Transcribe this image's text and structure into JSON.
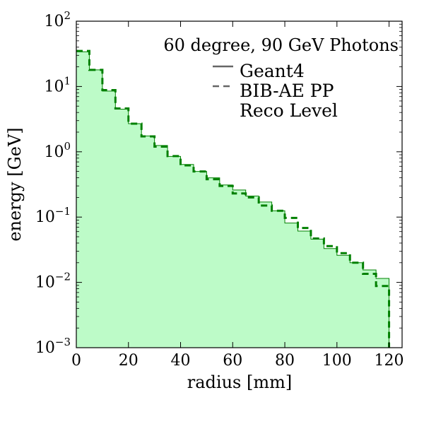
{
  "chart_data": {
    "type": "step",
    "title": "60 degree, 90 GeV Photons",
    "xlabel": "radius [mm]",
    "ylabel": "energy [GeV]",
    "xlim": [
      0,
      125
    ],
    "ylim": [
      0.001,
      100
    ],
    "yscale": "log",
    "bin_edges": [
      0,
      5,
      10,
      15,
      20,
      25,
      30,
      35,
      40,
      45,
      50,
      55,
      60,
      65,
      70,
      75,
      80,
      85,
      90,
      95,
      100,
      105,
      110,
      115,
      120
    ],
    "x_ticks": [
      0,
      20,
      40,
      60,
      80,
      100,
      120
    ],
    "x_tick_labels": [
      "0",
      "20",
      "40",
      "60",
      "80",
      "100",
      "120"
    ],
    "y_ticks": [
      {
        "value": 100,
        "base": "10",
        "exp": "2"
      },
      {
        "value": 10,
        "base": "10",
        "exp": "1"
      },
      {
        "value": 1,
        "base": "10",
        "exp": "0"
      },
      {
        "value": 0.1,
        "base": "10",
        "exp": "−1"
      },
      {
        "value": 0.01,
        "base": "10",
        "exp": "−2"
      },
      {
        "value": 0.001,
        "base": "10",
        "exp": "−3"
      }
    ],
    "series": [
      {
        "name": "Geant4",
        "style": "solid",
        "fill": true,
        "color": "#008000",
        "fill_color": "#bdfbc8",
        "values": [
          34,
          18,
          8.5,
          4.5,
          2.7,
          1.75,
          1.25,
          0.85,
          0.64,
          0.5,
          0.4,
          0.31,
          0.26,
          0.21,
          0.17,
          0.125,
          0.081,
          0.061,
          0.046,
          0.033,
          0.026,
          0.02,
          0.0155,
          0.0115
        ]
      },
      {
        "name": "BIB-AE PP",
        "style": "dashed",
        "fill": false,
        "color": "#008000",
        "values": [
          35,
          18,
          8.8,
          4.6,
          2.7,
          1.72,
          1.2,
          0.86,
          0.62,
          0.5,
          0.38,
          0.3,
          0.23,
          0.2,
          0.15,
          0.125,
          0.097,
          0.068,
          0.047,
          0.036,
          0.028,
          0.02,
          0.0135,
          0.0088
        ]
      }
    ],
    "legend": {
      "placement": "top-right",
      "entries": [
        {
          "label": "Geant4",
          "style": "solid"
        },
        {
          "label": "BIB-AE PP",
          "style": "dashed"
        },
        {
          "label": "Reco Level",
          "style": "none"
        }
      ]
    },
    "colors": {
      "line": "#008000",
      "fill": "#bdfbc8",
      "legend_text": "#666666",
      "legend_line": "#666666"
    }
  }
}
